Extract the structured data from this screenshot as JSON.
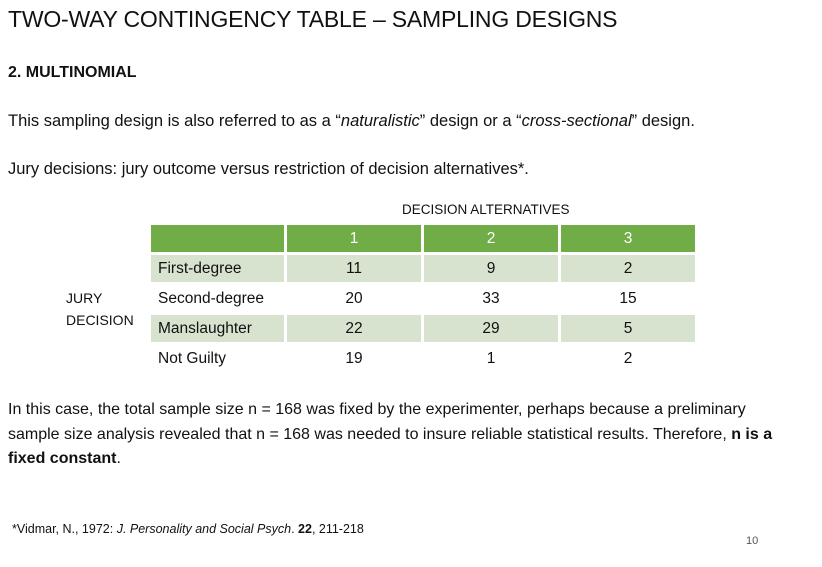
{
  "slide": {
    "title": "TWO-WAY CONTINGENCY TABLE – SAMPLING DESIGNS",
    "section": "2.  MULTINOMIAL",
    "intro": {
      "pre": "This sampling design is also referred to as a “",
      "term1": "naturalistic",
      "mid": "” design or a “",
      "term2": "cross-sectional",
      "post": "” design."
    },
    "example_line": "Jury decisions:  jury outcome versus restriction of decision alternatives*.",
    "page_number": "10"
  },
  "table": {
    "column_group_label": "DECISION ALTERNATIVES",
    "row_group_label": "JURY DECISION",
    "header_blank": "",
    "columns": [
      "1",
      "2",
      "3"
    ],
    "rows": [
      {
        "label": "First-degree",
        "values": [
          "11",
          "9",
          "2"
        ]
      },
      {
        "label": "Second-degree",
        "values": [
          "20",
          "33",
          "15"
        ]
      },
      {
        "label": "Manslaughter",
        "values": [
          "22",
          "29",
          "5"
        ]
      },
      {
        "label": "Not Guilty",
        "values": [
          "19",
          "1",
          "2"
        ]
      }
    ],
    "header_color": "#70ad47",
    "band_color": "#d8e3cf"
  },
  "paragraph": {
    "text": "In this case, the total sample size n = 168 was fixed by the experimenter, perhaps because a preliminary sample size analysis revealed that n = 168 was needed to insure reliable statistical results.  Therefore, ",
    "bold": "n is a fixed constant",
    "end": "."
  },
  "footnote": {
    "prefix": "*Vidmar, N., 1972: ",
    "journal": "J. Personality and Social Psych",
    "after_journal": ". ",
    "volume": "22",
    "pages": ", 211-218"
  }
}
